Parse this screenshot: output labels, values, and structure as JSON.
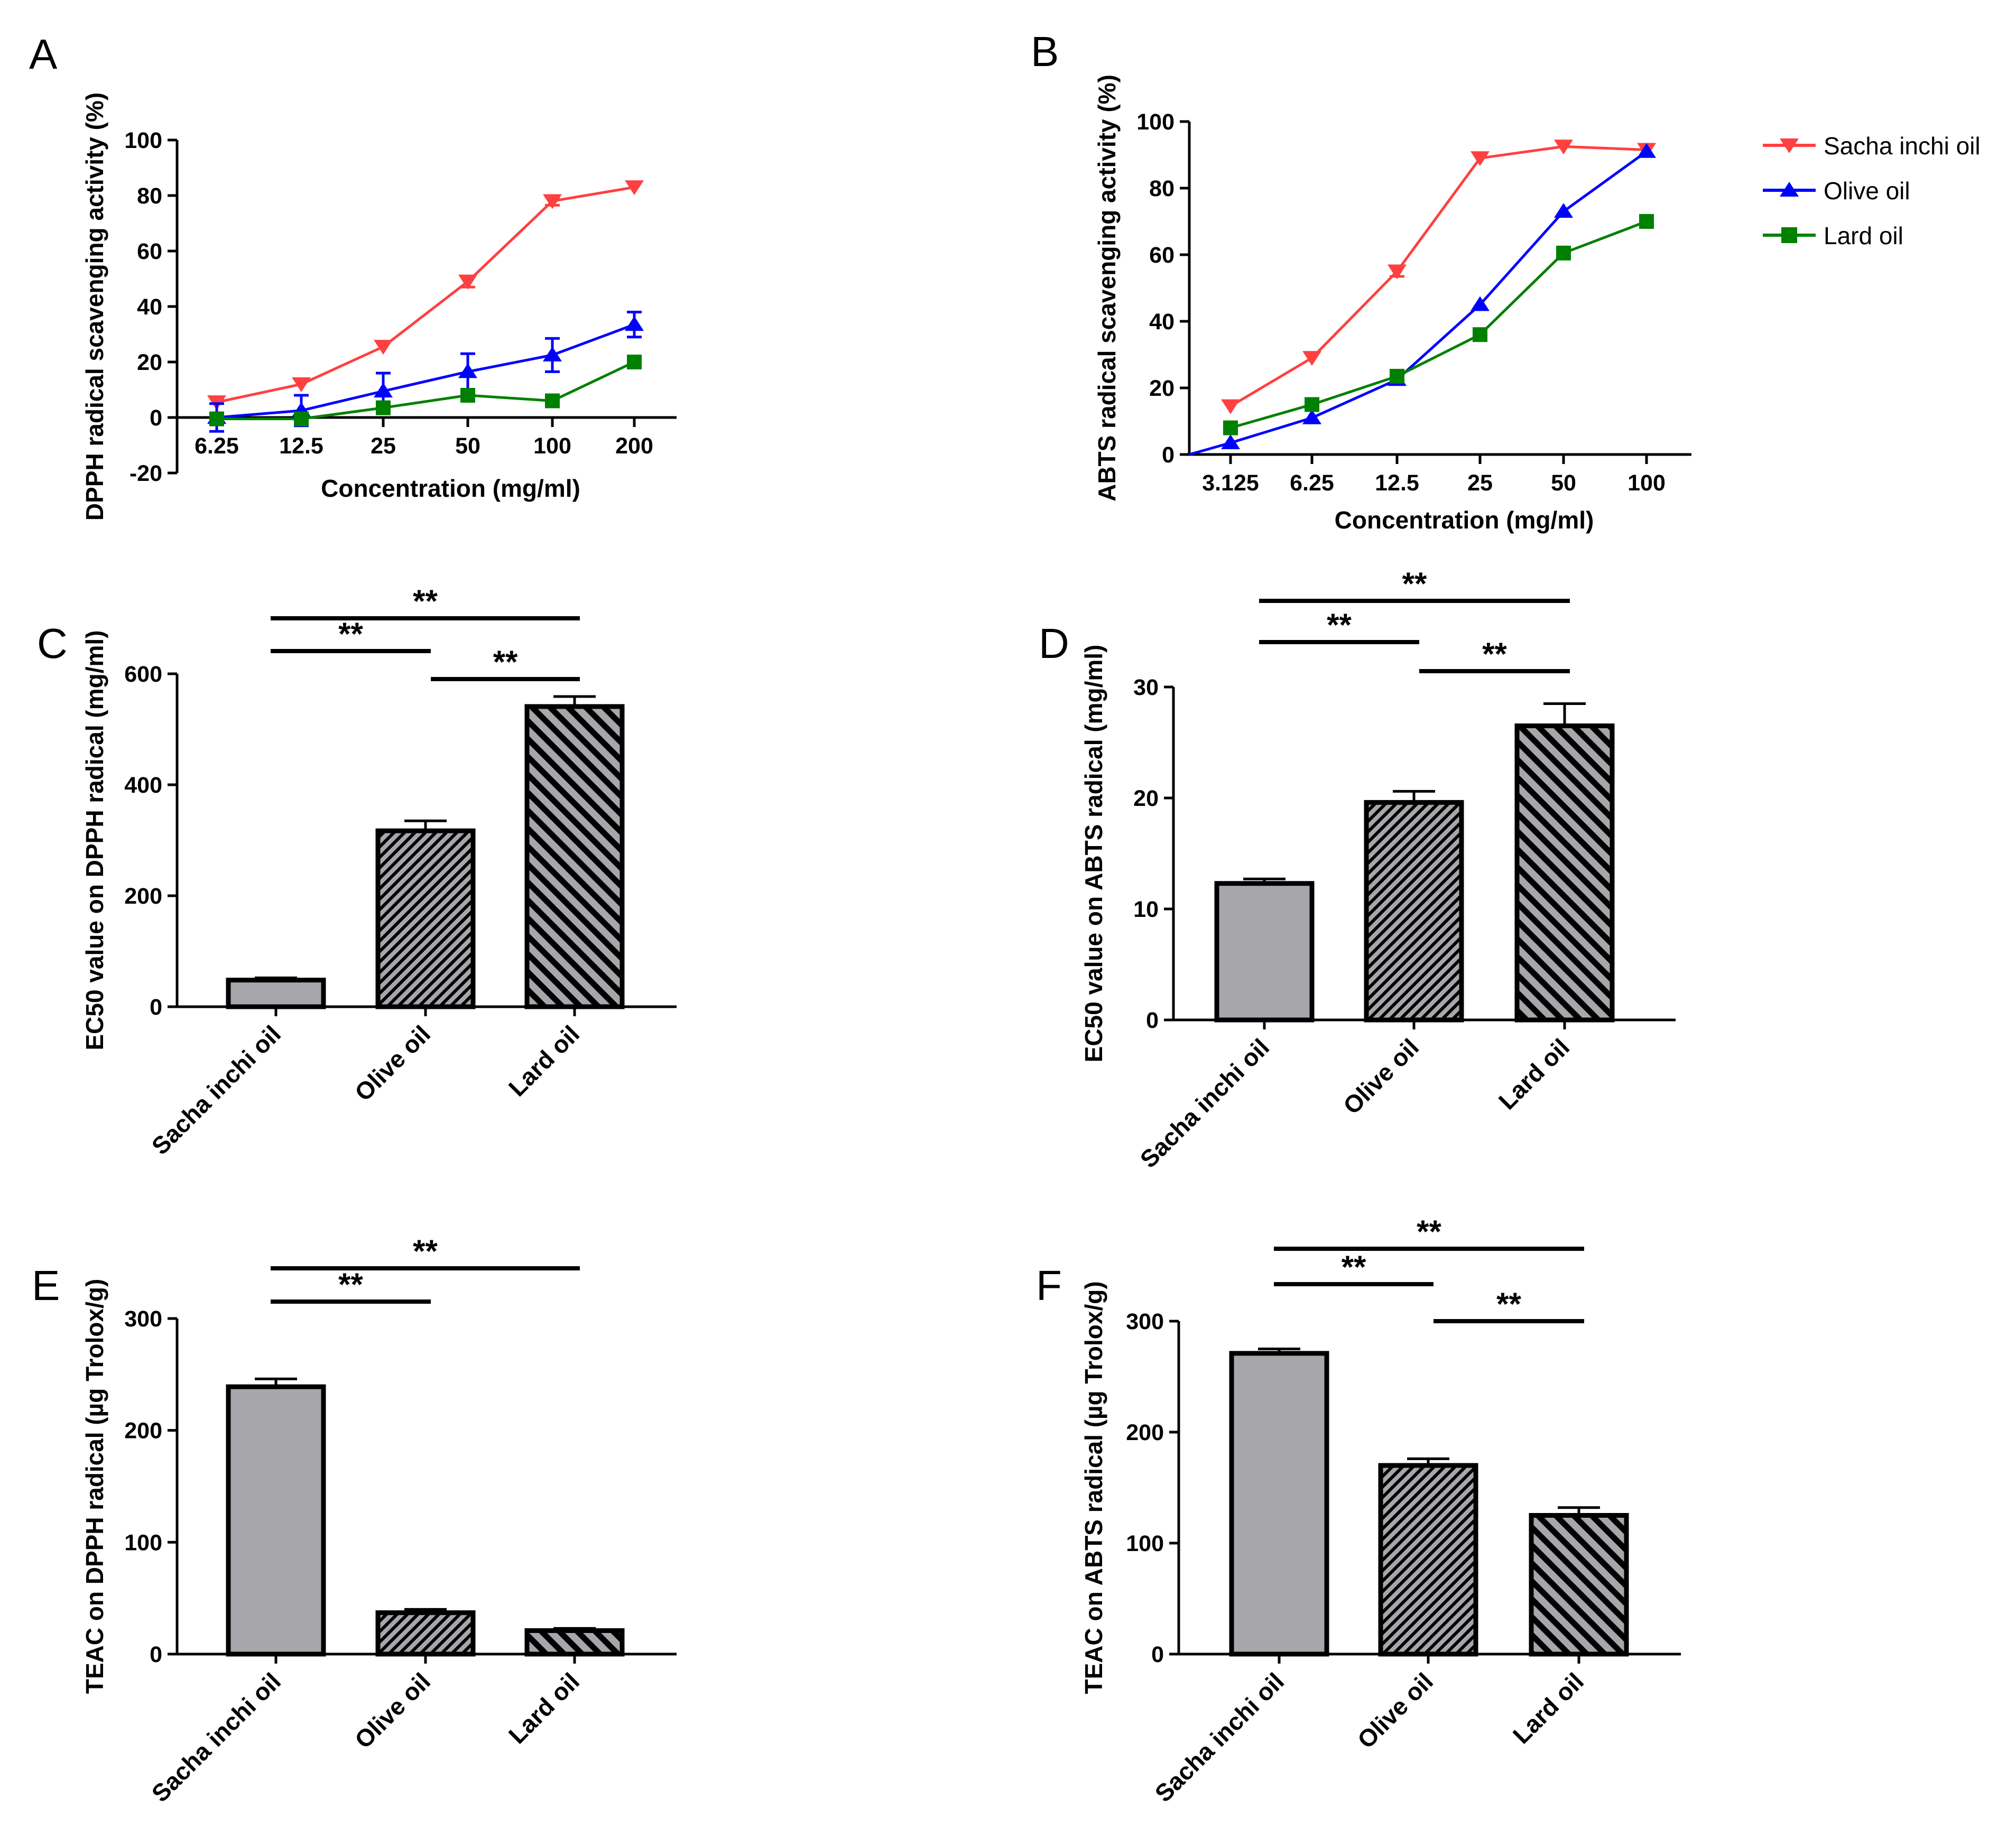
{
  "colors": {
    "sacha": "#ff4040",
    "olive": "#0000ff",
    "lard": "#008000",
    "bar_fill": "#a7a6ab",
    "bar_hatch": "#000000"
  },
  "legend": {
    "items": [
      "Sacha inchi oil",
      "Olive oil",
      "Lard oil"
    ]
  },
  "chart_data": [
    {
      "panel": "A",
      "type": "line",
      "ylabel": "DPPH radical scavenging activity (%)",
      "xlabel": "Concentration (mg/ml)",
      "categories": [
        "6.25",
        "12.5",
        "25",
        "50",
        "100",
        "200"
      ],
      "ylim": [
        -20,
        100
      ],
      "yticks": [
        "-20",
        "0",
        "20",
        "40",
        "60",
        "80",
        "100"
      ],
      "series": [
        {
          "name": "Sacha inchi oil",
          "values": [
            5.5,
            12,
            25.5,
            49,
            78,
            83
          ],
          "errors": [
            0.5,
            0.5,
            0.5,
            2,
            1.5,
            0.5
          ]
        },
        {
          "name": "Olive oil",
          "values": [
            0,
            2.5,
            9.5,
            16.5,
            22.5,
            33.5
          ],
          "errors": [
            5,
            5.5,
            6.5,
            6.5,
            6,
            4.5
          ]
        },
        {
          "name": "Lard oil",
          "values": [
            -0.5,
            -0.5,
            3.5,
            8,
            6,
            20
          ],
          "errors": [
            0.5,
            0.5,
            0.5,
            0.5,
            0.5,
            0.5
          ]
        }
      ]
    },
    {
      "panel": "B",
      "type": "line",
      "ylabel": "ABTS radical scavenging activity (%)",
      "xlabel": "Concentration (mg/ml)",
      "categories": [
        "3.125",
        "6.25",
        "12.5",
        "25",
        "50",
        "100"
      ],
      "ylim": [
        0,
        100
      ],
      "yticks": [
        "0",
        "20",
        "40",
        "60",
        "80",
        "100"
      ],
      "series": [
        {
          "name": "Sacha inchi oil",
          "values": [
            14.5,
            29,
            55,
            89,
            92.5,
            91.5
          ],
          "errors": [
            0.5,
            0.5,
            1.5,
            0.5,
            0.5,
            0.5
          ]
        },
        {
          "name": "Olive oil",
          "values": [
            3.5,
            11,
            22.5,
            45,
            73,
            91
          ],
          "errors": [
            0.5,
            0.5,
            0.5,
            0.5,
            0.5,
            0.5
          ]
        },
        {
          "name": "Lard oil",
          "values": [
            8,
            15,
            23.5,
            36,
            60.5,
            70
          ],
          "errors": [
            0.5,
            0.5,
            0.5,
            1.5,
            0.5,
            0.5
          ]
        }
      ]
    },
    {
      "panel": "C",
      "type": "bar",
      "ylabel": "EC50 value on DPPH radical (mg/ml)",
      "categories": [
        "Sacha inchi oil",
        "Olive oil",
        "Lard oil"
      ],
      "values": [
        48,
        317,
        541
      ],
      "errors": [
        4,
        18,
        18
      ],
      "ylim": [
        0,
        600
      ],
      "yticks": [
        "0",
        "200",
        "400",
        "600"
      ],
      "significance": [
        {
          "from": 0,
          "to": 1,
          "label": "**"
        },
        {
          "from": 1,
          "to": 2,
          "label": "**"
        },
        {
          "from": 0,
          "to": 2,
          "label": "**"
        }
      ]
    },
    {
      "panel": "D",
      "type": "bar",
      "ylabel": "EC50 value on ABTS radical (mg/ml)",
      "categories": [
        "Sacha inchi oil",
        "Olive oil",
        "Lard oil"
      ],
      "values": [
        12.3,
        19.6,
        26.5
      ],
      "errors": [
        0.4,
        1.0,
        2.0
      ],
      "ylim": [
        0,
        30
      ],
      "yticks": [
        "0",
        "10",
        "20",
        "30"
      ],
      "significance": [
        {
          "from": 0,
          "to": 1,
          "label": "**"
        },
        {
          "from": 1,
          "to": 2,
          "label": "**"
        },
        {
          "from": 0,
          "to": 2,
          "label": "**"
        }
      ]
    },
    {
      "panel": "E",
      "type": "bar",
      "ylabel": "TEAC on DPPH radical (µg Trolox/g)",
      "categories": [
        "Sacha inchi oil",
        "Olive oil",
        "Lard oil"
      ],
      "values": [
        239,
        37,
        21
      ],
      "errors": [
        7,
        3,
        2
      ],
      "ylim": [
        0,
        300
      ],
      "yticks": [
        "0",
        "100",
        "200",
        "300"
      ],
      "significance": [
        {
          "from": 0,
          "to": 1,
          "label": "**"
        },
        {
          "from": 0,
          "to": 2,
          "label": "**"
        }
      ]
    },
    {
      "panel": "F",
      "type": "bar",
      "ylabel": "TEAC on ABTS radical (µg Trolox/g)",
      "categories": [
        "Sacha inchi oil",
        "Olive oil",
        "Lard oil"
      ],
      "values": [
        271,
        170,
        125
      ],
      "errors": [
        4,
        6,
        7
      ],
      "ylim": [
        0,
        300
      ],
      "yticks": [
        "0",
        "100",
        "200",
        "300"
      ],
      "significance": [
        {
          "from": 0,
          "to": 1,
          "label": "**"
        },
        {
          "from": 1,
          "to": 2,
          "label": "**"
        },
        {
          "from": 0,
          "to": 2,
          "label": "**"
        }
      ]
    }
  ]
}
